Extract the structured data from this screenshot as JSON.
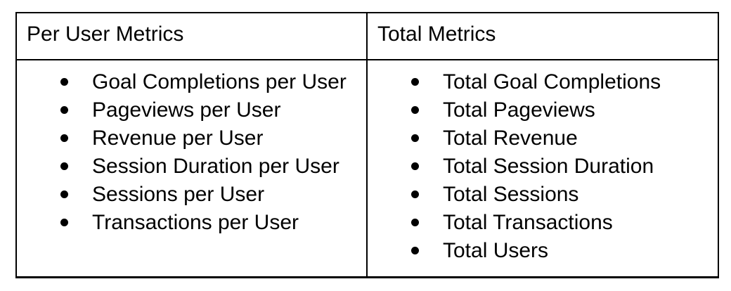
{
  "page": {
    "background": "#ffffff"
  },
  "table": {
    "border_color": "#000000",
    "text_color": "#000000",
    "columns": [
      {
        "header": "Per User Metrics",
        "items": [
          "Goal Completions per User",
          "Pageviews per User",
          "Revenue per User",
          "Session Duration per User",
          "Sessions per User",
          "Transactions per User"
        ]
      },
      {
        "header": "Total Metrics",
        "items": [
          "Total Goal Completions",
          "Total Pageviews",
          "Total Revenue",
          "Total Session Duration",
          "Total Sessions",
          "Total Transactions",
          "Total Users"
        ]
      }
    ]
  }
}
